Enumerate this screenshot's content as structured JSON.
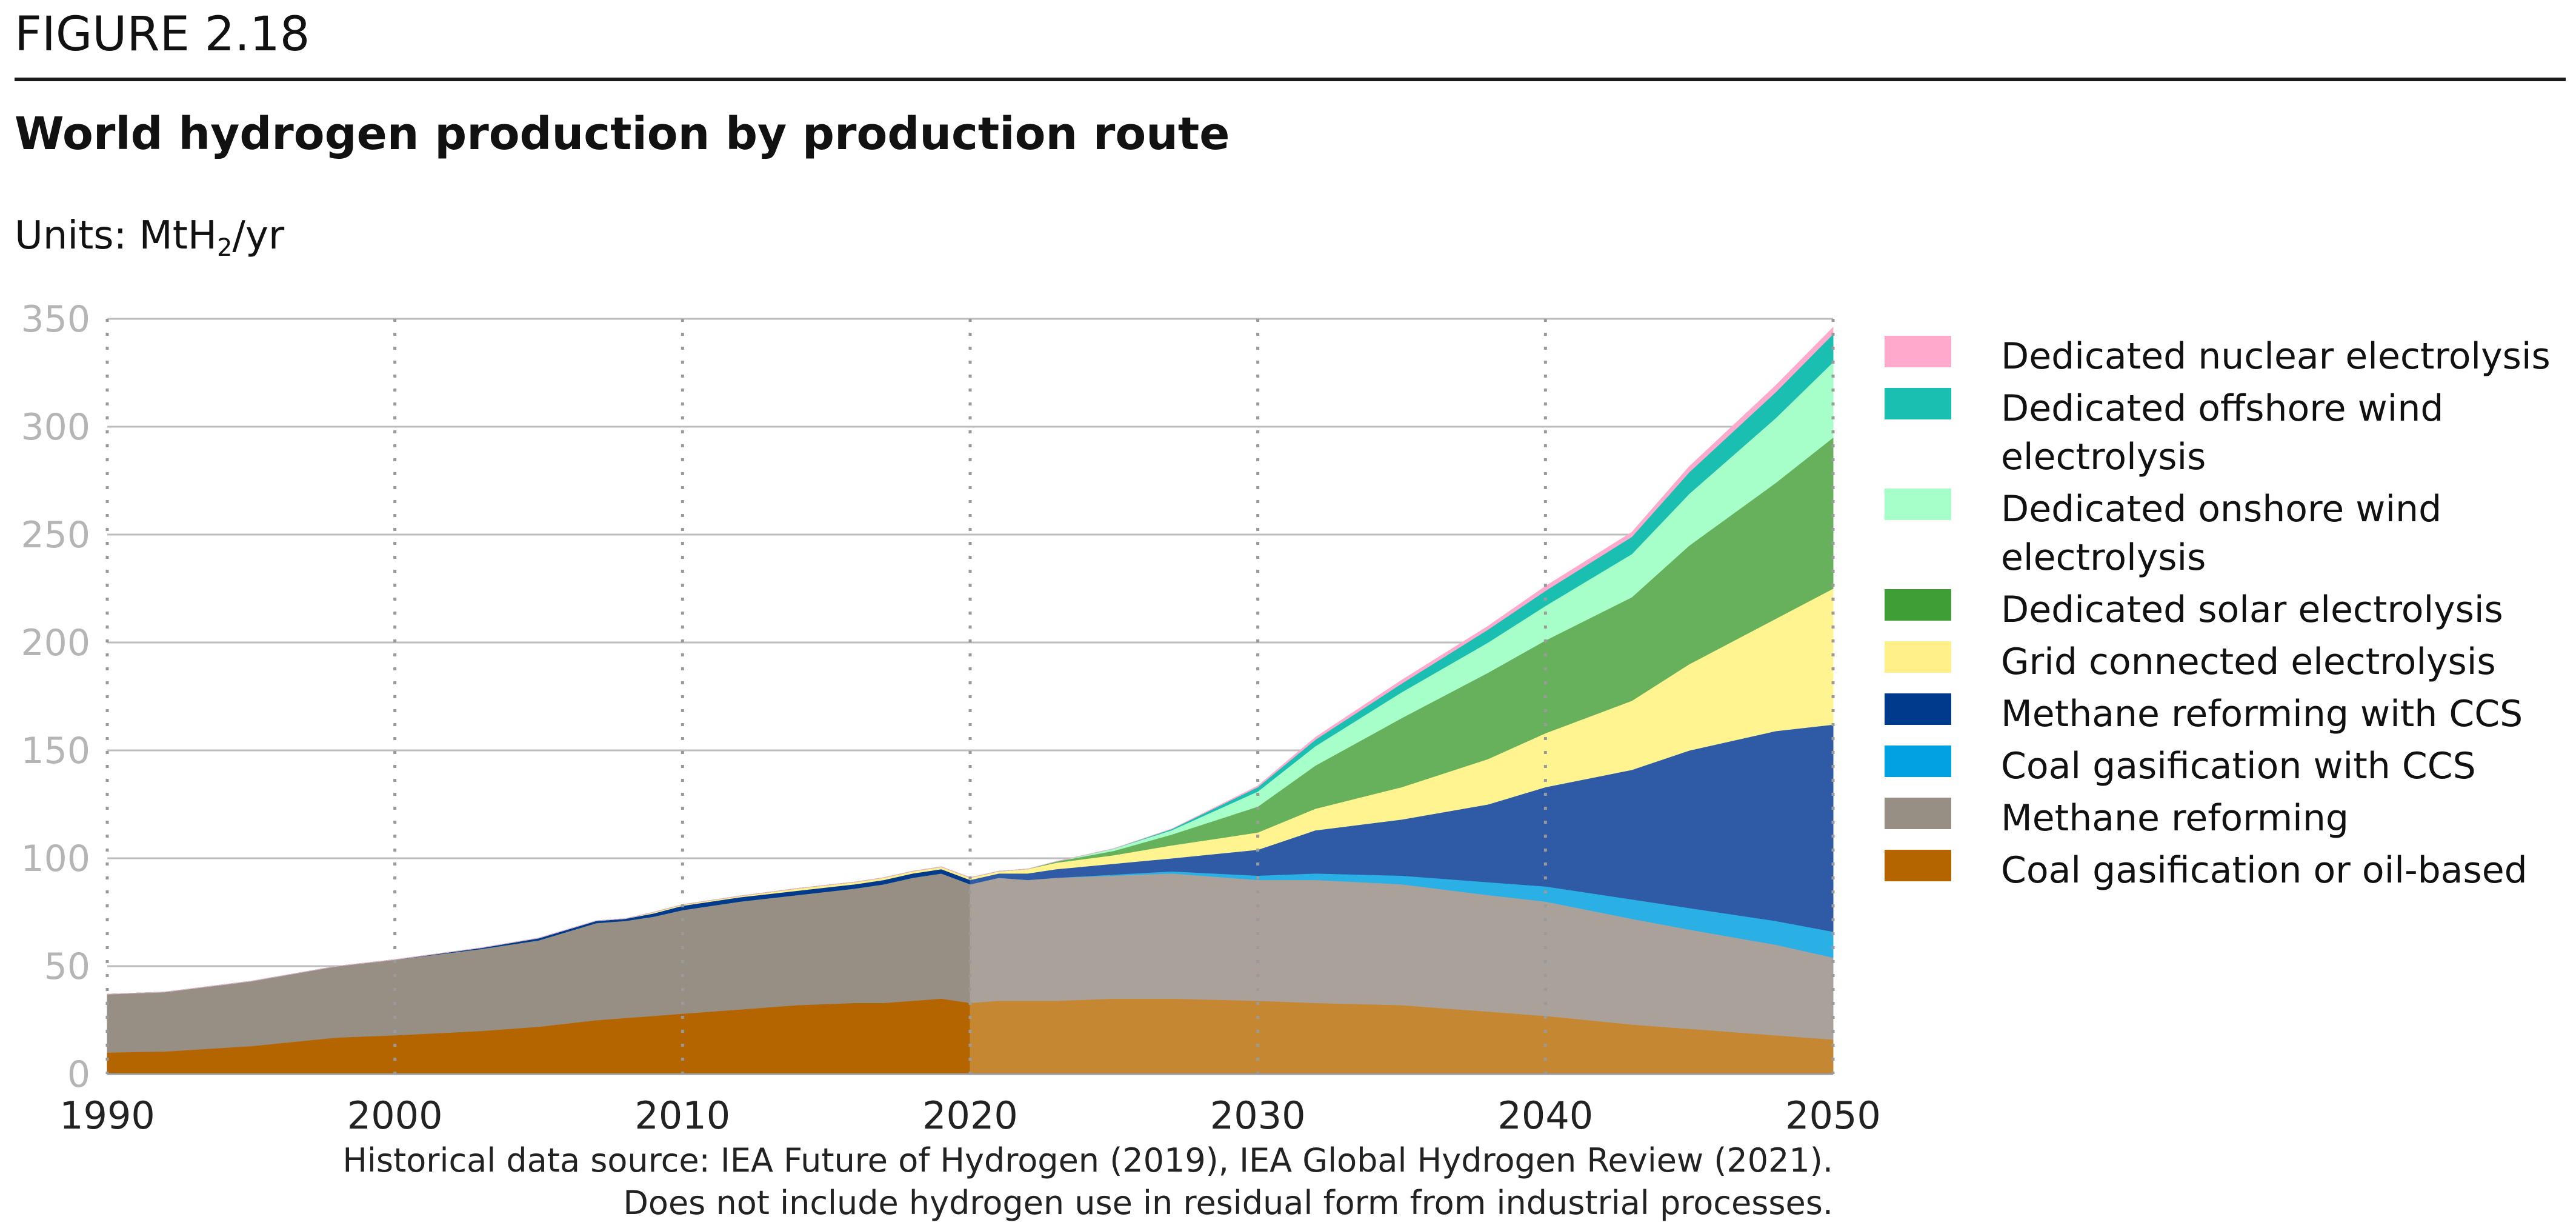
{
  "figure_label": "FIGURE 2.18",
  "title": "World hydrogen production by production route",
  "units_prefix": "Units: MtH",
  "units_sub": "2",
  "units_suffix": "/yr",
  "source_line1": "Historical data source: IEA Future of Hydrogen (2019), IEA Global Hydrogen Review (2021).",
  "source_line2": "Does not include hydrogen use in residual form from industrial processes.",
  "chart_data": {
    "type": "area",
    "stacked": true,
    "forecast_from": 2020,
    "xlim": [
      1990,
      2050
    ],
    "ylim": [
      0,
      350
    ],
    "x_ticks": [
      "1990",
      "2000",
      "2010",
      "2020",
      "2030",
      "2040",
      "2050"
    ],
    "y_ticks": [
      "0",
      "50",
      "100",
      "150",
      "200",
      "250",
      "300",
      "350"
    ],
    "grid": "horizontal solid lines, vertical dotted lines at each decade",
    "legend_position": "right",
    "x": [
      1990,
      1992,
      1995,
      1998,
      2000,
      2003,
      2005,
      2007,
      2008,
      2009,
      2010,
      2012,
      2014,
      2016,
      2017,
      2018,
      2019,
      2020,
      2021,
      2022,
      2023,
      2025,
      2027,
      2030,
      2032,
      2035,
      2038,
      2040,
      2043,
      2045,
      2048,
      2050
    ],
    "series": [
      {
        "name": "Coal gasification or oil-based",
        "color": "#b56500",
        "forecast_color": "#c68733",
        "values": [
          10,
          10.5,
          13,
          17,
          18,
          20,
          22,
          25,
          26,
          27,
          28,
          30,
          32,
          33,
          33,
          34,
          35,
          33,
          34,
          34,
          34,
          35,
          35,
          34,
          33,
          32,
          29,
          27,
          23,
          21,
          18,
          16
        ]
      },
      {
        "name": "Methane reforming",
        "color": "#988f84",
        "forecast_color": "#aaa29a",
        "values": [
          27,
          27.5,
          30,
          33,
          35,
          38,
          40,
          45,
          45,
          46,
          48,
          50,
          51,
          53,
          55,
          57,
          58,
          55,
          57,
          56,
          57,
          57,
          58,
          56,
          57,
          56,
          54,
          53,
          49,
          46,
          42,
          38
        ]
      },
      {
        "name": "Coal gasification with CCS",
        "color": "#00a3e0",
        "forecast_color": "#2bb0e6",
        "values": [
          0,
          0,
          0,
          0,
          0,
          0,
          0,
          0,
          0,
          0,
          0,
          0,
          0,
          0,
          0,
          0,
          0,
          0,
          0,
          0,
          0,
          0.5,
          1,
          2,
          3,
          4,
          6,
          7,
          9,
          10,
          11,
          12
        ]
      },
      {
        "name": "Methane reforming with CCS",
        "color": "#003a8c",
        "forecast_color": "#2f5ba6",
        "values": [
          0,
          0,
          0,
          0,
          0,
          0.5,
          1,
          1,
          1,
          1.5,
          2,
          2,
          2,
          2,
          2,
          2,
          2,
          2,
          2,
          3,
          4,
          5,
          6,
          12,
          20,
          26,
          36,
          46,
          60,
          73,
          88,
          96
        ]
      },
      {
        "name": "Grid connected electrolysis",
        "color": "#fff08a",
        "forecast_color": "#fff48f",
        "values": [
          0,
          0,
          0,
          0,
          0,
          0,
          0,
          0,
          0,
          0.5,
          0.5,
          0.5,
          1,
          1,
          1,
          1,
          1,
          1,
          1,
          2,
          3,
          4,
          6,
          8,
          10,
          15,
          21,
          25,
          32,
          40,
          52,
          63
        ]
      },
      {
        "name": "Dedicated solar electrolysis",
        "color": "#3f9e35",
        "forecast_color": "#67b15c",
        "values": [
          0,
          0,
          0,
          0,
          0,
          0,
          0,
          0,
          0,
          0,
          0,
          0,
          0,
          0,
          0,
          0,
          0,
          0,
          0,
          0,
          0.5,
          2,
          5,
          12,
          20,
          32,
          40,
          43,
          48,
          55,
          63,
          70
        ]
      },
      {
        "name": "Dedicated onshore wind electrolysis",
        "color": "#a6ffc8",
        "forecast_color": "#a6ffc8",
        "values": [
          0,
          0,
          0,
          0,
          0,
          0,
          0,
          0,
          0,
          0,
          0,
          0,
          0,
          0,
          0,
          0,
          0,
          0,
          0,
          0,
          0,
          1,
          2,
          7,
          9,
          12,
          14,
          16,
          20,
          24,
          30,
          35
        ]
      },
      {
        "name": "Dedicated offshore wind electrolysis",
        "color": "#1abfb2",
        "forecast_color": "#1abfb2",
        "values": [
          0,
          0,
          0,
          0,
          0,
          0,
          0,
          0,
          0,
          0,
          0,
          0,
          0,
          0,
          0,
          0,
          0,
          0,
          0,
          0,
          0,
          0,
          0.5,
          2,
          3,
          4,
          6,
          7,
          8,
          10,
          12,
          13
        ]
      },
      {
        "name": "Dedicated nuclear electrolysis",
        "color": "#ffa9cc",
        "forecast_color": "#ffa9cc",
        "values": [
          0,
          0,
          0,
          0,
          0,
          0,
          0,
          0,
          0,
          0,
          0,
          0,
          0,
          0,
          0,
          0,
          0,
          0,
          0,
          0,
          0,
          0,
          0,
          0.5,
          1,
          1.5,
          1.5,
          2,
          2,
          2.5,
          3,
          3
        ]
      }
    ],
    "legend": [
      {
        "label": "Dedicated nuclear electrolysis",
        "color": "#ffa9cc"
      },
      {
        "label": "Dedicated offshore wind electrolysis",
        "color": "#1abfb2"
      },
      {
        "label": "Dedicated onshore wind electrolysis",
        "color": "#a6ffc8"
      },
      {
        "label": "Dedicated solar electrolysis",
        "color": "#3f9e35"
      },
      {
        "label": "Grid connected electrolysis",
        "color": "#fff08a"
      },
      {
        "label": "Methane reforming with CCS",
        "color": "#003a8c"
      },
      {
        "label": "Coal gasification with CCS",
        "color": "#00a3e0"
      },
      {
        "label": "Methane reforming",
        "color": "#988f84"
      },
      {
        "label": "Coal gasification or oil-based",
        "color": "#b56500"
      }
    ]
  }
}
